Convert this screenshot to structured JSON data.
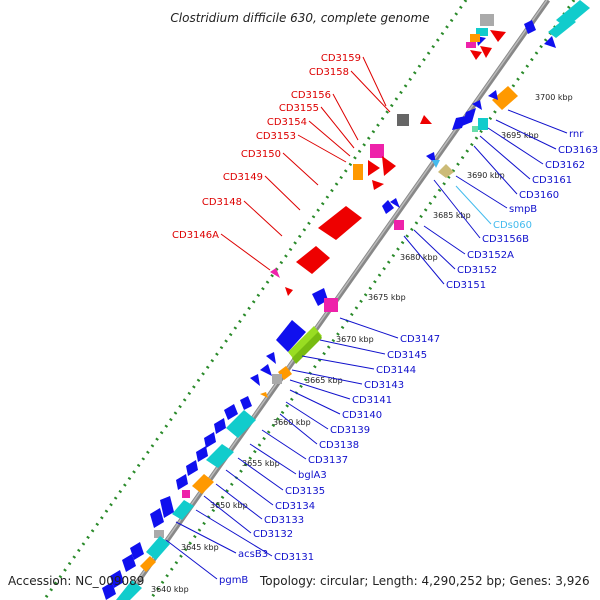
{
  "title": "Clostridium difficile 630, complete genome",
  "footer": {
    "accession": "Accession: NC_009089",
    "summary": "Topology: circular; Length: 4,290,252 bp; Genes: 3,926"
  },
  "colors": {
    "forward_label": "#dd0000",
    "reverse_label": "#1111cc",
    "highlight_label": "#44bbee",
    "backbone": "#888888",
    "dotted_track": "#2a8a2a",
    "gene_red": "#ee0000",
    "gene_blue": "#1010ee",
    "gene_cyan": "#11cccc",
    "gene_orange": "#ff9900",
    "gene_magenta": "#ee22aa",
    "gene_green": "#99dd22",
    "gene_gray": "#999999",
    "gene_tan": "#ccbb77"
  },
  "ticks": [
    "3640 kbp",
    "3645 kbp",
    "3650 kbp",
    "3655 kbp",
    "3660 kbp",
    "3665 kbp",
    "3670 kbp",
    "3675 kbp",
    "3680 kbp",
    "3685 kbp",
    "3690 kbp",
    "3695 kbp",
    "3700 kbp"
  ],
  "forward_labels": [
    "CD3159",
    "CD3158",
    "CD3156",
    "CD3155",
    "CD3154",
    "CD3153",
    "CD3150",
    "CD3149",
    "CD3148",
    "CD3146A"
  ],
  "reverse_labels_lower": [
    "CD3147",
    "CD3145",
    "CD3144",
    "CD3143",
    "CD3141",
    "CD3140",
    "CD3139",
    "CD3138",
    "CD3137",
    "bglA3",
    "CD3135",
    "CD3134",
    "CD3133",
    "CD3132",
    "CD3131",
    "acsB3",
    "pgmB"
  ],
  "reverse_labels_upper": [
    "rnr",
    "CD3163",
    "CD3162",
    "CD3161",
    "CD3160",
    "smpB",
    "CDs060",
    "CD3156B",
    "CD3152A",
    "CD3152",
    "CD3151"
  ]
}
